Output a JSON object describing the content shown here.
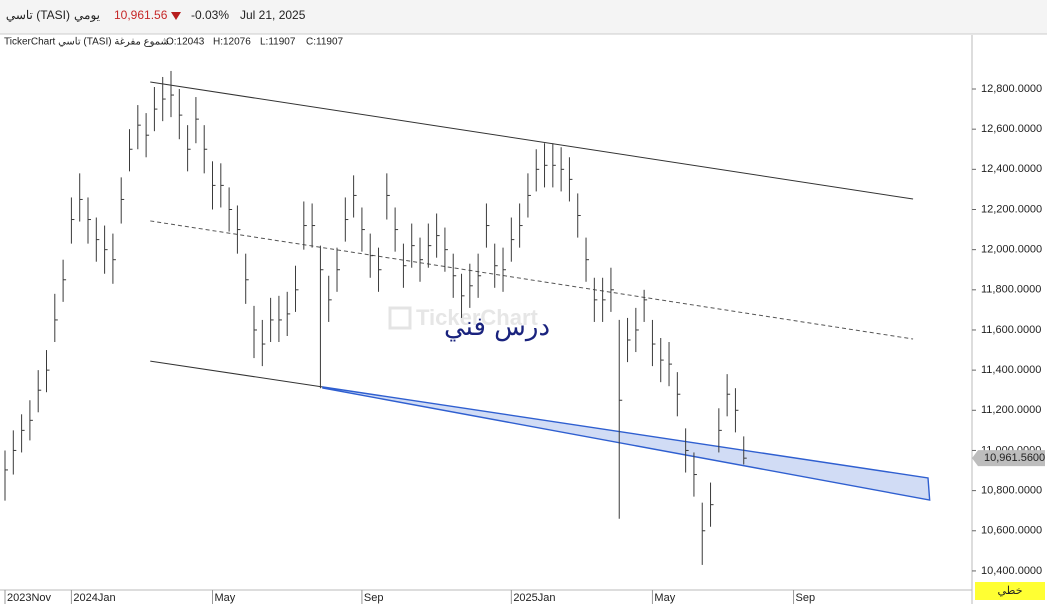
{
  "header": {
    "symbol": "تاسي (TASI)",
    "period": "يومي",
    "price": "10,961.56",
    "change": "-0.03%",
    "date": "Jul 21, 2025"
  },
  "info": {
    "title": "TickerChart تاسي (TASI) شموع مفرغة",
    "open": "O:12043",
    "high": "H:12076",
    "low": "L:11907",
    "close": "C:11907"
  },
  "watermark": {
    "brand": "TickerChart",
    "caption": "درس فني"
  },
  "footer": {
    "mode": "خطي"
  },
  "chart_data": {
    "type": "ohlc",
    "color": "#3a3a3a",
    "categories": [
      "2023Nov",
      null,
      null,
      null,
      null,
      null,
      null,
      null,
      "2024Jan",
      null,
      null,
      null,
      null,
      null,
      null,
      null,
      null,
      null,
      null,
      null,
      null,
      null,
      null,
      null,
      null,
      "May",
      null,
      null,
      null,
      null,
      null,
      null,
      null,
      null,
      null,
      null,
      null,
      null,
      null,
      null,
      null,
      null,
      null,
      "Sep",
      null,
      null,
      null,
      null,
      null,
      null,
      null,
      null,
      null,
      null,
      null,
      null,
      null,
      null,
      null,
      null,
      null,
      "2025Jan",
      null,
      null,
      null,
      null,
      null,
      null,
      null,
      null,
      null,
      null,
      null,
      null,
      null,
      null,
      null,
      null,
      "May",
      null,
      null,
      null,
      null,
      null,
      null,
      null,
      null,
      null,
      null,
      null,
      null,
      null,
      null,
      null,
      null,
      "Sep",
      null,
      null,
      null,
      null,
      null,
      null,
      null,
      null,
      null,
      null,
      null,
      null,
      null,
      null,
      null,
      null,
      null,
      null,
      null,
      null,
      null
    ],
    "high": [
      11000,
      11100,
      11180,
      11250,
      11400,
      11500,
      11780,
      11950,
      12260,
      12380,
      12260,
      12160,
      12120,
      12080,
      12360,
      12600,
      12720,
      12680,
      12810,
      12860,
      12890,
      12800,
      12620,
      12760,
      12620,
      12440,
      12430,
      12310,
      12220,
      11980,
      11720,
      11650,
      11760,
      11770,
      11790,
      11920,
      12240,
      12230,
      12020,
      11870,
      12010,
      12260,
      12370,
      12210,
      12080,
      12010,
      12380,
      12210,
      12030,
      12130,
      12060,
      12130,
      12180,
      12110,
      11980,
      11880,
      11930,
      11980,
      12230,
      12030,
      12010,
      12160,
      12230,
      12380,
      12500,
      12530,
      12530,
      12510,
      12460,
      12280,
      12060,
      11860,
      11860,
      11910,
      11650,
      11660,
      11710,
      11800,
      11650,
      11560,
      11540,
      11390,
      11110,
      10990,
      10740,
      10840,
      11210,
      11380,
      11310,
      11070,
      null,
      null,
      null,
      null,
      null,
      null,
      null,
      null,
      null,
      null,
      null,
      null,
      null,
      null,
      null,
      null,
      null,
      null,
      null,
      null,
      null,
      null,
      null,
      null,
      null,
      null,
      null
    ],
    "low": [
      10750,
      10880,
      10990,
      11050,
      11190,
      11290,
      11540,
      11740,
      12030,
      12140,
      12030,
      11940,
      11880,
      11830,
      12130,
      12390,
      12500,
      12460,
      12590,
      12640,
      12660,
      12550,
      12390,
      12530,
      12380,
      12200,
      12210,
      12090,
      11980,
      11730,
      11460,
      11420,
      11540,
      11540,
      11570,
      11690,
      12000,
      12010,
      11310,
      11640,
      11790,
      12040,
      12160,
      11990,
      11860,
      11790,
      12150,
      11990,
      11810,
      11910,
      11840,
      11910,
      11960,
      11890,
      11760,
      11660,
      11710,
      11760,
      12010,
      11810,
      11790,
      11940,
      12010,
      12160,
      12290,
      12310,
      12310,
      12290,
      12240,
      12060,
      11840,
      11640,
      11640,
      11690,
      10660,
      11440,
      11490,
      11640,
      11420,
      11340,
      11320,
      11170,
      10890,
      10770,
      10430,
      10620,
      10990,
      11170,
      11090,
      10930,
      null,
      null,
      null,
      null,
      null,
      null,
      null,
      null,
      null,
      null,
      null,
      null,
      null,
      null,
      null,
      null,
      null,
      null,
      null,
      null,
      null,
      null,
      null,
      null,
      null,
      null,
      null
    ],
    "close": [
      10903,
      11000,
      11100,
      11150,
      11300,
      11400,
      11650,
      11850,
      12150,
      12250,
      12150,
      12050,
      12000,
      11950,
      12250,
      12500,
      12620,
      12570,
      12700,
      12750,
      12770,
      12670,
      12500,
      12650,
      12500,
      12320,
      12320,
      12200,
      12100,
      11850,
      11600,
      11530,
      11650,
      11650,
      11680,
      11800,
      12120,
      12120,
      11900,
      11750,
      11900,
      12150,
      12270,
      12100,
      11970,
      11900,
      12270,
      12100,
      11920,
      12020,
      11950,
      12020,
      12070,
      12000,
      11870,
      11770,
      11820,
      11870,
      12120,
      11920,
      11900,
      12050,
      12120,
      12270,
      12400,
      12420,
      12420,
      12400,
      12350,
      12170,
      11950,
      11750,
      11750,
      11800,
      11250,
      11550,
      11600,
      11750,
      11530,
      11450,
      11430,
      11280,
      11000,
      10880,
      10600,
      10730,
      11100,
      11280,
      11200,
      10961.56,
      null,
      null,
      null,
      null,
      null,
      null,
      null,
      null,
      null,
      null,
      null,
      null,
      null,
      null,
      null,
      null,
      null,
      null,
      null,
      null,
      null,
      null,
      null,
      null,
      null,
      null,
      null
    ],
    "last_label": "10,961.5600",
    "ylim": [
      10305,
      13069
    ],
    "yticks": [
      {
        "value": 10400,
        "label": "10,400.0000"
      },
      {
        "value": 10600,
        "label": "10,600.0000"
      },
      {
        "value": 10800,
        "label": "10,800.0000"
      },
      {
        "value": 11000,
        "label": "11,000.0000"
      },
      {
        "value": 11200,
        "label": "11,200.0000"
      },
      {
        "value": 11400,
        "label": "11,400.0000"
      },
      {
        "value": 11600,
        "label": "11,600.0000"
      },
      {
        "value": 11800,
        "label": "11,800.0000"
      },
      {
        "value": 12000,
        "label": "12,000.0000"
      },
      {
        "value": 12200,
        "label": "12,200.0000"
      },
      {
        "value": 12400,
        "label": "12,400.0000"
      },
      {
        "value": 12600,
        "label": "12,600.0000"
      },
      {
        "value": 12800,
        "label": "12,800.0000"
      }
    ],
    "trendlines": [
      {
        "style": "solid",
        "color": "#333333",
        "points": [
          [
            17.5,
            12835
          ],
          [
            109.4,
            12252
          ]
        ]
      },
      {
        "style": "dashed",
        "color": "#555555",
        "points": [
          [
            17.5,
            12143
          ],
          [
            109.4,
            11555
          ]
        ]
      },
      {
        "style": "solid",
        "color": "#333333",
        "points": [
          [
            17.5,
            11445
          ],
          [
            38.3,
            11316
          ]
        ]
      },
      {
        "style": "band",
        "color": "#2f5fd0",
        "points": [
          [
            38.3,
            11316
          ],
          [
            111.2,
            10863
          ],
          [
            111.4,
            10753
          ],
          [
            38.3,
            11311
          ]
        ]
      }
    ]
  }
}
